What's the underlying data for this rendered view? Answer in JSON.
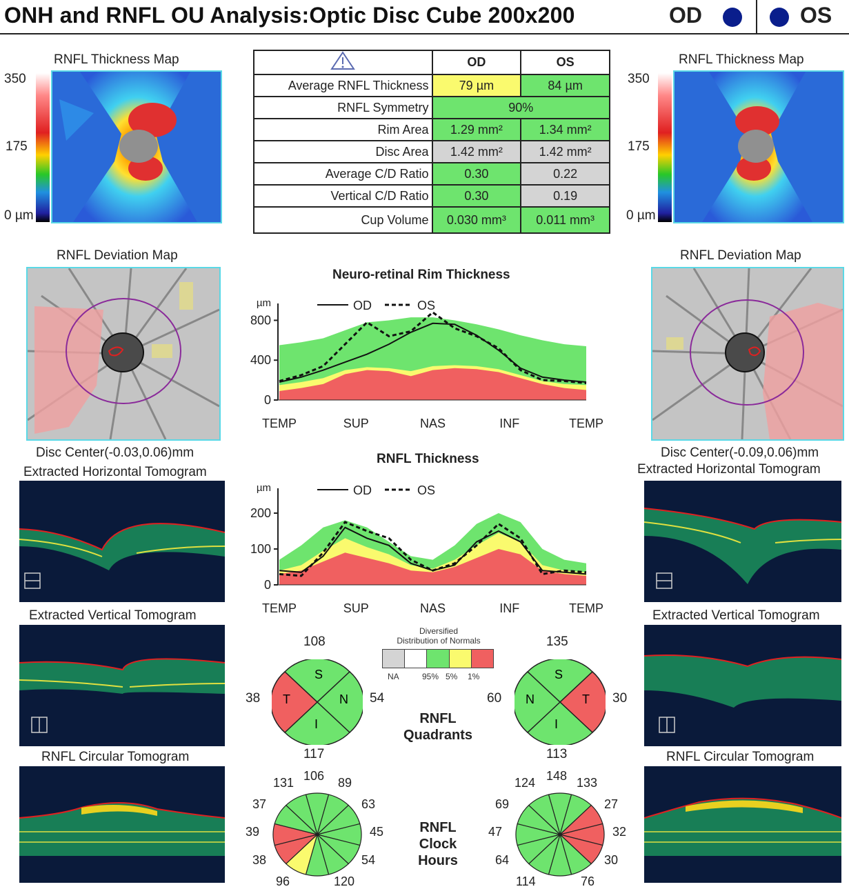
{
  "header": {
    "title": "ONH and RNFL OU Analysis:Optic Disc Cube 200x200",
    "od_label": "OD",
    "os_label": "OS"
  },
  "colors": {
    "normal_green": "#6ee46e",
    "borderline_yellow": "#fafa6e",
    "outside_red": "#f06060",
    "na_gray": "#d4d4d4",
    "eye_dot": "#0a1e8c"
  },
  "thickness_map": {
    "title_od": "RNFL Thickness Map",
    "title_os": "RNFL Thickness Map",
    "scale_max": "350",
    "scale_mid": "175",
    "scale_min": "0 µm"
  },
  "params": {
    "warning_icon": "warning-triangle-icon",
    "col_od": "OD",
    "col_os": "OS",
    "rows": [
      {
        "name": "Average RNFL Thickness",
        "od": "79 µm",
        "os": "84 µm"
      },
      {
        "name": "RNFL Symmetry",
        "both": "90%"
      },
      {
        "name": "Rim Area",
        "od": "1.29 mm²",
        "os": "1.34 mm²"
      },
      {
        "name": "Disc Area",
        "od": "1.42 mm²",
        "os": "1.42 mm²"
      },
      {
        "name": "Average C/D Ratio",
        "od": "0.30",
        "os": "0.22"
      },
      {
        "name": "Vertical C/D Ratio",
        "od": "0.30",
        "os": "0.19"
      },
      {
        "name": "Cup Volume",
        "od": "0.030 mm³",
        "os": "0.011 mm³"
      }
    ]
  },
  "deviation_map": {
    "title_od": "RNFL Deviation Map",
    "title_os": "RNFL Deviation Map",
    "disc_center_od": "Disc Center(-0.03,0.06)mm",
    "disc_center_os": "Disc Center(-0.09,0.06)mm"
  },
  "tomograms": {
    "horizontal_od": "Extracted Horizontal Tomogram",
    "horizontal_os": "Extracted Horizontal Tomogram",
    "vertical_od": "Extracted Vertical Tomogram",
    "vertical_os": "Extracted Vertical Tomogram",
    "circular_od": "RNFL Circular Tomogram",
    "circular_os": "RNFL Circular Tomogram"
  },
  "legend_lines": {
    "od": "OD",
    "os": "OS"
  },
  "chart_data": [
    {
      "type": "line",
      "title": "Neuro-retinal Rim Thickness",
      "ylabel": "µm",
      "ylim": [
        0,
        900
      ],
      "yticks": [
        0,
        400,
        800
      ],
      "xticks": [
        "TEMP",
        "SUP",
        "NAS",
        "INF",
        "TEMP"
      ],
      "x": [
        0,
        25,
        50,
        75,
        100,
        125,
        150,
        175,
        200,
        225,
        250,
        275,
        300,
        325,
        350
      ],
      "bands": {
        "red_upper": [
          90,
          120,
          160,
          260,
          300,
          290,
          240,
          300,
          320,
          310,
          280,
          220,
          160,
          120,
          100
        ],
        "yellow_upper": [
          150,
          180,
          220,
          300,
          330,
          320,
          290,
          340,
          350,
          340,
          310,
          250,
          190,
          160,
          150
        ],
        "green_upper": [
          550,
          580,
          620,
          700,
          780,
          800,
          830,
          830,
          800,
          760,
          710,
          650,
          600,
          560,
          540
        ]
      },
      "series": [
        {
          "name": "OD",
          "values": [
            180,
            230,
            300,
            380,
            460,
            560,
            680,
            770,
            760,
            650,
            500,
            320,
            230,
            200,
            180
          ]
        },
        {
          "name": "OS",
          "values": [
            190,
            250,
            340,
            560,
            780,
            640,
            690,
            880,
            720,
            640,
            520,
            300,
            200,
            190,
            170
          ]
        }
      ]
    },
    {
      "type": "line",
      "title": "RNFL Thickness",
      "ylabel": "µm",
      "ylim": [
        0,
        250
      ],
      "yticks": [
        0,
        100,
        200
      ],
      "xticks": [
        "TEMP",
        "SUP",
        "NAS",
        "INF",
        "TEMP"
      ],
      "x": [
        0,
        25,
        50,
        75,
        100,
        125,
        150,
        175,
        200,
        225,
        250,
        275,
        300,
        325,
        350
      ],
      "bands": {
        "red_upper": [
          30,
          40,
          65,
          90,
          75,
          60,
          40,
          35,
          50,
          75,
          100,
          85,
          40,
          30,
          25
        ],
        "yellow_upper": [
          40,
          55,
          95,
          130,
          105,
          85,
          55,
          45,
          70,
          110,
          145,
          120,
          55,
          40,
          35
        ],
        "green_upper": [
          70,
          110,
          160,
          180,
          160,
          120,
          80,
          70,
          110,
          170,
          200,
          175,
          100,
          70,
          60
        ]
      },
      "series": [
        {
          "name": "OD",
          "values": [
            40,
            35,
            80,
            160,
            130,
            110,
            60,
            40,
            55,
            120,
            150,
            120,
            40,
            35,
            30
          ]
        },
        {
          "name": "OS",
          "values": [
            30,
            25,
            90,
            175,
            150,
            130,
            70,
            40,
            60,
            110,
            170,
            130,
            30,
            40,
            35
          ]
        }
      ]
    },
    {
      "type": "pie",
      "title": "RNFL Quadrants",
      "legend_title": "Distribution of Normals",
      "legend_subtitle": "Diversified",
      "legend_items": [
        "NA",
        "95%",
        "5%",
        "1%"
      ],
      "od": {
        "T": 38,
        "S": 108,
        "N": 54,
        "I": 117,
        "colors": {
          "T": "red",
          "S": "green",
          "N": "green",
          "I": "green"
        }
      },
      "os": {
        "N": 60,
        "S": 135,
        "T": 30,
        "I": 113,
        "colors": {
          "N": "green",
          "S": "green",
          "T": "red",
          "I": "green"
        }
      }
    },
    {
      "type": "pie",
      "title": "RNFL Clock Hours",
      "od": {
        "values": [
          106,
          89,
          63,
          45,
          54,
          120,
          96,
          38,
          39,
          37,
          131
        ]
      },
      "os": {
        "values": [
          148,
          133,
          27,
          32,
          30,
          76,
          114,
          64,
          47,
          69,
          124
        ]
      }
    }
  ],
  "quadrant_labels": {
    "s": "S",
    "t": "T",
    "n": "N",
    "i": "I"
  },
  "quadrant_title": "RNFL",
  "quadrant_title2": "Quadrants",
  "clock_title1": "RNFL",
  "clock_title2": "Clock",
  "clock_title3": "Hours"
}
